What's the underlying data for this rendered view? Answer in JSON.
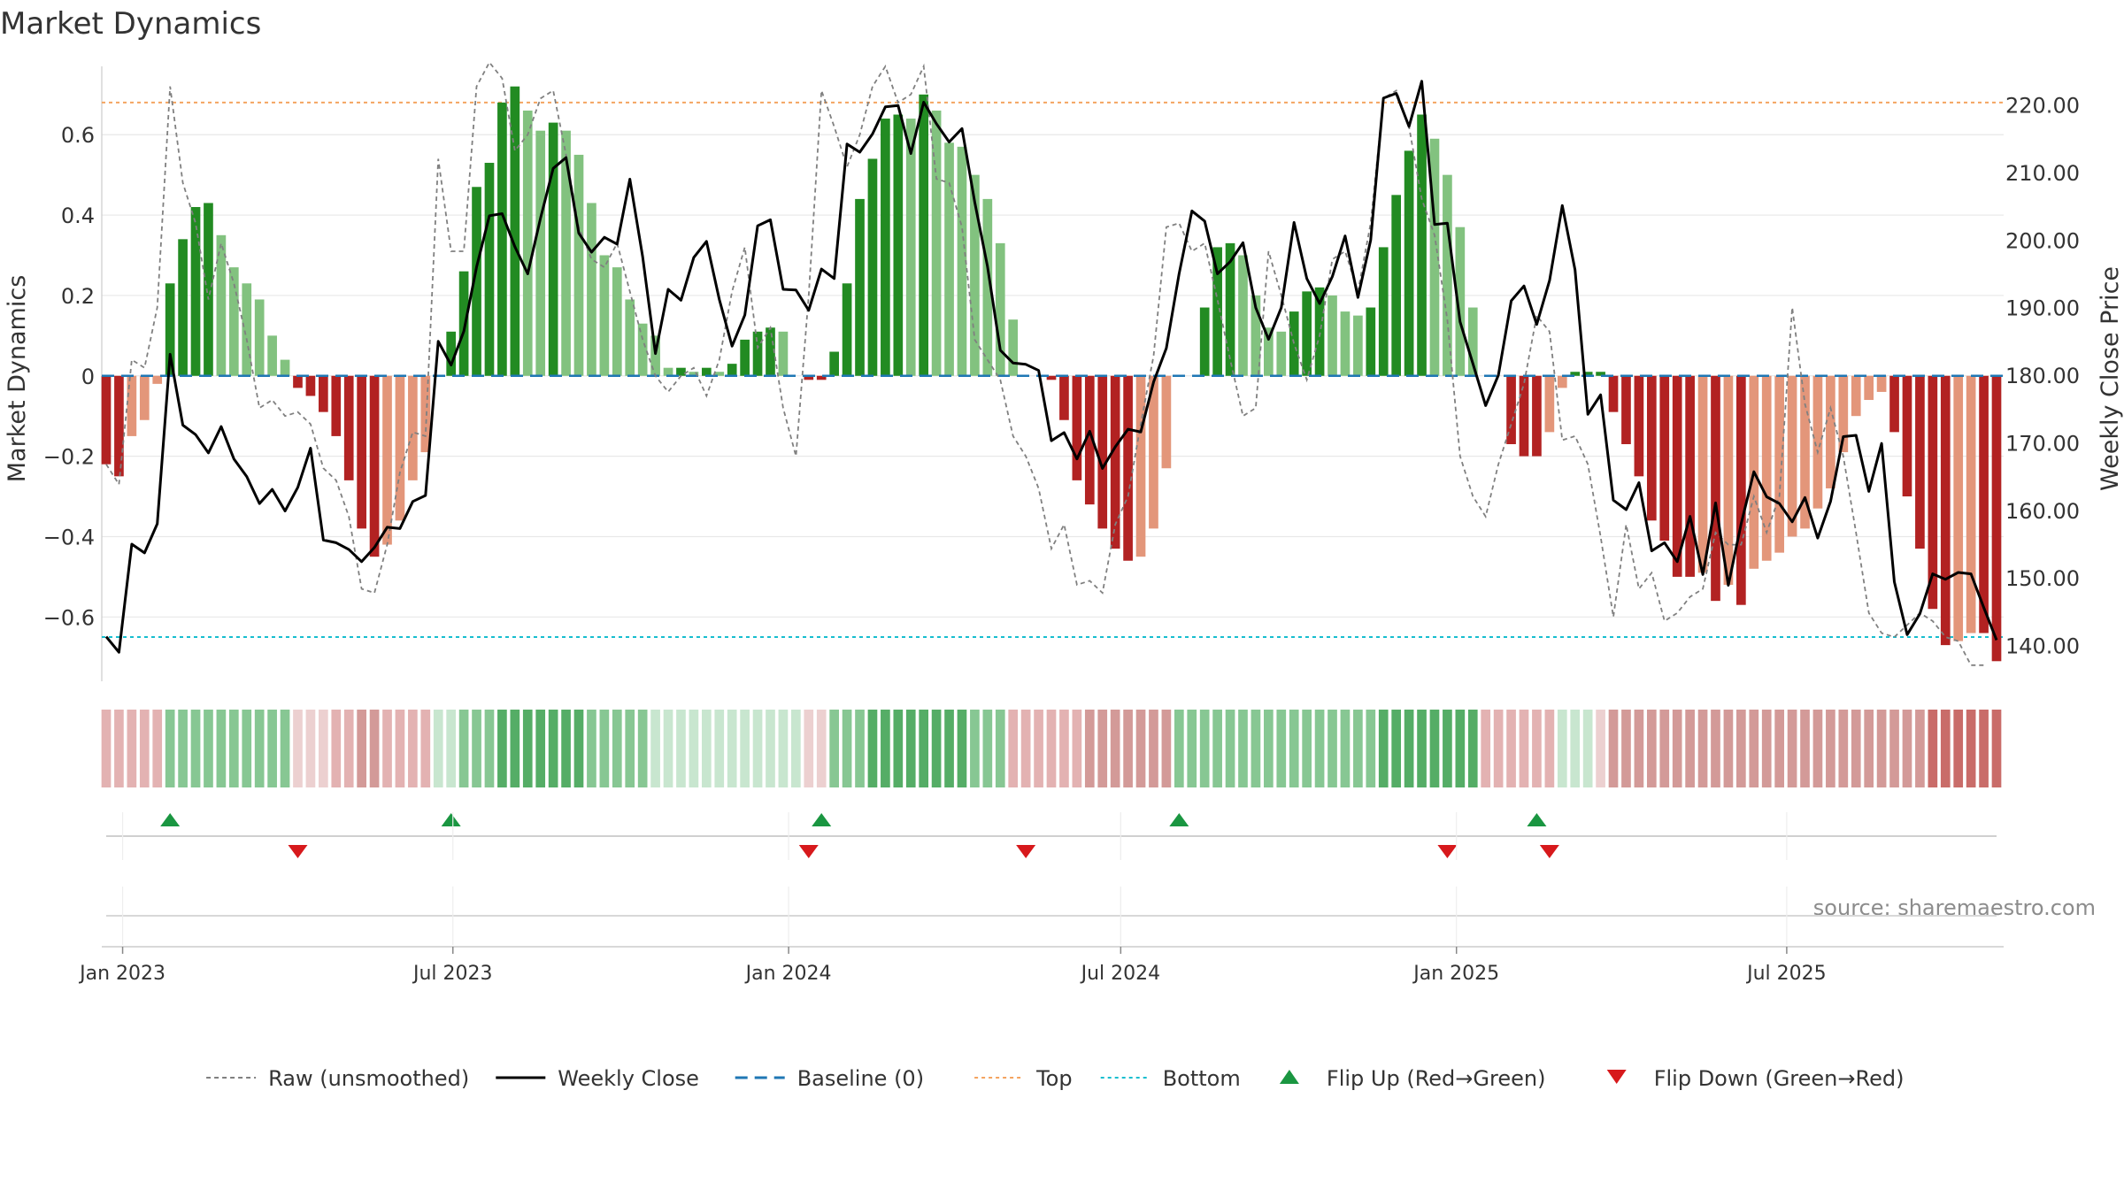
{
  "chart_data": {
    "type": "bar",
    "title": "Market Dynamics",
    "ylabel_left": "Market Dynamics",
    "ylabel_right": "Weekly Close Price",
    "ylim_left": [
      -0.76,
      0.77
    ],
    "ylim_right": [
      134.7,
      225.7
    ],
    "yticks_left": [
      -0.6,
      -0.4,
      -0.2,
      0,
      0.2,
      0.4,
      0.6
    ],
    "yticks_left_labels": [
      "−0.6",
      "−0.4",
      "−0.2",
      "0",
      "0.2",
      "0.4",
      "0.6"
    ],
    "yticks_right": [
      140,
      150,
      160,
      170,
      180,
      190,
      200,
      210,
      220
    ],
    "yticks_right_labels": [
      "140.00",
      "150.00",
      "160.00",
      "170.00",
      "180.00",
      "190.00",
      "200.00",
      "210.00",
      "220.00"
    ],
    "x_start": "2022-12-23",
    "x_step_days": 7,
    "xticks": [
      {
        "date": "2023-01-01",
        "label": "Jan 2023"
      },
      {
        "date": "2023-07-01",
        "label": "Jul 2023"
      },
      {
        "date": "2024-01-01",
        "label": "Jan 2024"
      },
      {
        "date": "2024-07-01",
        "label": "Jul 2024"
      },
      {
        "date": "2025-01-01",
        "label": "Jan 2025"
      },
      {
        "date": "2025-07-01",
        "label": "Jul 2025"
      }
    ],
    "top_level": 0.68,
    "bottom_level": -0.65,
    "grid": true,
    "legend_placement": "bottom-center",
    "colors": {
      "strong_up": "#228b22",
      "weak_up": "#82c27f",
      "strong_down": "#b22222",
      "weak_down": "#e3967a",
      "raw": "#808080",
      "close": "#000000",
      "baseline": "#1f77b4",
      "top": "#f4a460",
      "bottom": "#17becf",
      "flip_up": "#1a9641",
      "flip_down": "#d7191c"
    },
    "series": [
      {
        "name": "Market Dynamics",
        "values": [
          -0.22,
          -0.25,
          -0.15,
          -0.11,
          -0.02,
          0.23,
          0.34,
          0.42,
          0.43,
          0.35,
          0.27,
          0.23,
          0.19,
          0.1,
          0.04,
          -0.03,
          -0.05,
          -0.09,
          -0.15,
          -0.26,
          -0.38,
          -0.45,
          -0.42,
          -0.36,
          -0.26,
          -0.19,
          0.0,
          0.11,
          0.26,
          0.47,
          0.53,
          0.68,
          0.72,
          0.66,
          0.61,
          0.63,
          0.61,
          0.55,
          0.43,
          0.3,
          0.27,
          0.19,
          0.13,
          0.1,
          0.02,
          0.02,
          0.01,
          0.02,
          0.01,
          0.03,
          0.09,
          0.11,
          0.12,
          0.11,
          0.0,
          -0.01,
          -0.01,
          0.06,
          0.23,
          0.44,
          0.54,
          0.64,
          0.65,
          0.64,
          0.7,
          0.66,
          0.58,
          0.57,
          0.5,
          0.44,
          0.33,
          0.14,
          0.0,
          0.0,
          -0.01,
          -0.11,
          -0.26,
          -0.32,
          -0.38,
          -0.43,
          -0.46,
          -0.45,
          -0.38,
          -0.23,
          0.0,
          0.0,
          0.17,
          0.32,
          0.33,
          0.3,
          0.2,
          0.12,
          0.11,
          0.16,
          0.21,
          0.22,
          0.2,
          0.16,
          0.15,
          0.17,
          0.32,
          0.45,
          0.56,
          0.65,
          0.59,
          0.5,
          0.37,
          0.17,
          0.0,
          0.0,
          -0.17,
          -0.2,
          -0.2,
          -0.14,
          -0.03,
          0.01,
          0.01,
          0.01,
          -0.09,
          -0.17,
          -0.25,
          -0.36,
          -0.41,
          -0.5,
          -0.5,
          -0.49,
          -0.56,
          -0.52,
          -0.57,
          -0.48,
          -0.46,
          -0.44,
          -0.4,
          -0.38,
          -0.33,
          -0.28,
          -0.19,
          -0.1,
          -0.06,
          -0.04,
          -0.14,
          -0.3,
          -0.43,
          -0.58,
          -0.67,
          -0.66,
          -0.64,
          -0.64,
          -0.71
        ]
      },
      {
        "name": "Raw (unsmoothed)",
        "values": [
          -0.22,
          -0.27,
          0.04,
          0.02,
          0.17,
          0.72,
          0.48,
          0.38,
          0.19,
          0.33,
          0.23,
          0.09,
          -0.08,
          -0.06,
          -0.1,
          -0.09,
          -0.12,
          -0.23,
          -0.26,
          -0.35,
          -0.53,
          -0.54,
          -0.42,
          -0.24,
          -0.14,
          -0.15,
          0.54,
          0.31,
          0.31,
          0.72,
          0.78,
          0.74,
          0.56,
          0.6,
          0.69,
          0.71,
          0.55,
          0.37,
          0.29,
          0.27,
          0.33,
          0.21,
          0.09,
          0.0,
          -0.04,
          0.0,
          0.02,
          -0.05,
          0.04,
          0.21,
          0.32,
          0.07,
          0.12,
          -0.08,
          -0.2,
          0.2,
          0.71,
          0.62,
          0.52,
          0.6,
          0.72,
          0.77,
          0.68,
          0.7,
          0.77,
          0.49,
          0.48,
          0.37,
          0.09,
          0.04,
          -0.01,
          -0.15,
          -0.2,
          -0.28,
          -0.43,
          -0.37,
          -0.52,
          -0.51,
          -0.54,
          -0.37,
          -0.3,
          -0.12,
          0.05,
          0.37,
          0.38,
          0.31,
          0.33,
          0.19,
          0.04,
          -0.1,
          -0.08,
          0.31,
          0.2,
          0.08,
          -0.01,
          0.1,
          0.29,
          0.31,
          0.21,
          0.38,
          0.69,
          0.71,
          0.62,
          0.44,
          0.35,
          0.14,
          -0.2,
          -0.3,
          -0.35,
          -0.22,
          -0.12,
          -0.02,
          0.15,
          0.11,
          -0.16,
          -0.15,
          -0.22,
          -0.4,
          -0.6,
          -0.37,
          -0.53,
          -0.49,
          -0.61,
          -0.59,
          -0.55,
          -0.53,
          -0.39,
          -0.42,
          -0.42,
          -0.3,
          -0.39,
          -0.3,
          0.17,
          -0.07,
          -0.19,
          -0.08,
          -0.2,
          -0.39,
          -0.59,
          -0.64,
          -0.65,
          -0.62,
          -0.59,
          -0.61,
          -0.65,
          -0.66,
          -0.72,
          -0.72
        ]
      },
      {
        "name": "Weekly Close",
        "values": [
          141.3,
          139,
          155,
          153.7,
          158,
          183.1,
          172.6,
          171.2,
          168.5,
          172.4,
          167.6,
          165,
          161,
          163.1,
          159.9,
          163.4,
          169.2,
          155.6,
          155.2,
          154.2,
          152.4,
          154.5,
          157.5,
          157.3,
          161.3,
          162.2,
          185,
          181.5,
          186.5,
          196,
          203.6,
          203.9,
          199,
          195,
          203.2,
          210.6,
          212.2,
          201,
          198.2,
          200.4,
          199.4,
          209,
          197.5,
          183.2,
          192.7,
          191.1,
          197.4,
          199.8,
          191.2,
          184.3,
          188.9,
          202.1,
          203,
          192.7,
          192.6,
          189.6,
          195.7,
          194.3,
          214.2,
          213,
          215.7,
          219.7,
          219.9,
          212.8,
          220.4,
          217.2,
          214.5,
          216.5,
          205.6,
          196.1,
          183.7,
          181.8,
          181.6,
          180.7,
          170.3,
          171.5,
          167.6,
          171.7,
          166.2,
          169.4,
          172,
          171.6,
          179,
          184,
          195,
          204.3,
          202.8,
          195,
          196.8,
          199.6,
          190,
          185.3,
          190,
          202.6,
          194.3,
          190.6,
          194.6,
          200.6,
          191.5,
          200,
          221,
          221.7,
          216.8,
          223.5,
          202.3,
          202.5,
          187.9,
          181.7,
          175.5,
          180,
          191,
          193.2,
          187.5,
          194,
          205.1,
          195.6,
          174.2,
          177.1,
          161.5,
          160.1,
          164.1,
          154,
          155.2,
          152.4,
          159.1,
          150.5,
          161.1,
          148.9,
          158,
          165.7,
          162,
          161,
          158.3,
          161.9,
          155.9,
          161.3,
          170.9,
          171.1,
          162.8,
          169.9,
          149.4,
          141.6,
          144.7,
          150.6,
          149.8,
          150.8,
          150.6,
          145.6,
          140.8
        ]
      }
    ],
    "regime_strip": {
      "levels": [
        -1,
        -1,
        -1,
        -1,
        -1,
        1,
        1,
        1,
        1,
        1,
        1,
        1,
        1,
        1,
        1,
        -0.5,
        -0.5,
        -0.5,
        -1,
        -1,
        -1.5,
        -1.5,
        -1,
        -1,
        -1,
        -1,
        0.5,
        0.5,
        1,
        1,
        1,
        2,
        2,
        2,
        2,
        2,
        2,
        2,
        1,
        1,
        1,
        1,
        1,
        0.5,
        0.5,
        0.5,
        0.5,
        0.5,
        0.5,
        0.5,
        0.5,
        0.5,
        0.5,
        0.5,
        0.5,
        -0.5,
        -0.5,
        1,
        1,
        1,
        2,
        2,
        2,
        2,
        2,
        2,
        2,
        2,
        1,
        1,
        1,
        -1,
        -1,
        -1,
        -1,
        -1,
        -1,
        -1.5,
        -1.5,
        -1.5,
        -1.5,
        -1.5,
        -1.5,
        -1.5,
        1,
        1,
        1,
        1,
        1,
        1,
        1,
        1,
        1,
        1,
        1,
        1,
        1,
        1,
        1,
        1,
        2,
        2,
        2,
        2,
        2,
        2,
        2,
        2,
        -1,
        -1,
        -1,
        -1,
        -1,
        -1,
        0.5,
        0.5,
        0.5,
        -0.5,
        -1.5,
        -1.5,
        -1.5,
        -1.5,
        -1.5,
        -1.5,
        -1.5,
        -1.5,
        -1.5,
        -1.5,
        -1.5,
        -1.5,
        -1.5,
        -1.5,
        -1.5,
        -1.5,
        -1.5,
        -1.5,
        -1.5,
        -1.5,
        -1.5,
        -1.5,
        -1.5,
        -1.5,
        -1.5,
        -2,
        -2,
        -2,
        -2,
        -2,
        -2,
        -2,
        -2
      ]
    },
    "flips": {
      "up": [
        5,
        27,
        56,
        84,
        112
      ],
      "down": [
        15,
        55,
        72,
        105,
        113
      ]
    },
    "source_text": "source: sharemaestro.com",
    "legend": [
      {
        "label": "Raw (unsmoothed)",
        "style": "raw"
      },
      {
        "label": "Weekly Close",
        "style": "close"
      },
      {
        "label": "Baseline (0)",
        "style": "baseline"
      },
      {
        "label": "Top",
        "style": "top"
      },
      {
        "label": "Bottom",
        "style": "bottom"
      },
      {
        "label": "Flip Up (Red→Green)",
        "style": "flip_up"
      },
      {
        "label": "Flip Down (Green→Red)",
        "style": "flip_down"
      }
    ]
  }
}
